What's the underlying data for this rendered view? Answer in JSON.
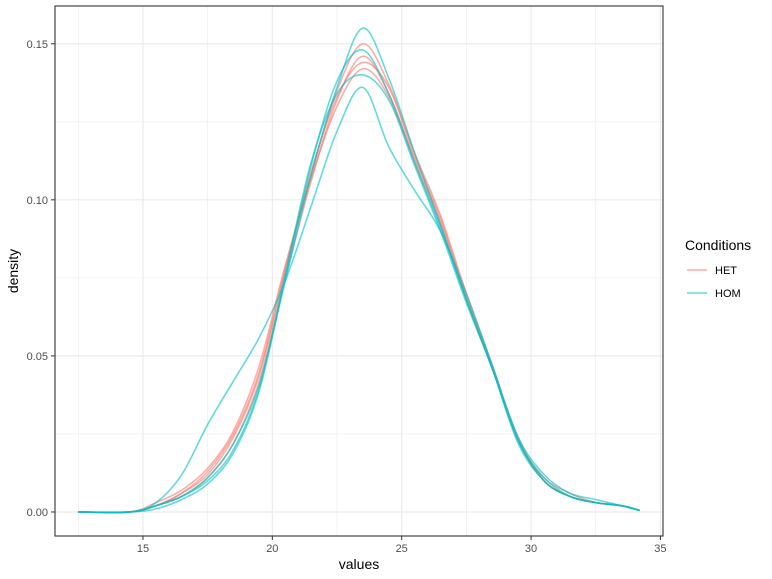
{
  "chart_data": {
    "type": "line",
    "title": "",
    "xlabel": "values",
    "ylabel": "density",
    "xlim": [
      11.6,
      35.1
    ],
    "ylim": [
      -0.0077,
      0.1621
    ],
    "x_ticks": [
      15,
      20,
      25,
      30,
      35
    ],
    "x_tick_labels": [
      "15",
      "20",
      "25",
      "30",
      "35"
    ],
    "y_ticks": [
      0.0,
      0.05,
      0.1,
      0.15
    ],
    "y_tick_labels": [
      "0.00",
      "0.05",
      "0.10",
      "0.15"
    ],
    "grid": true,
    "legend": {
      "title": "Conditions",
      "position": "right",
      "entries": [
        {
          "label": "HET",
          "color": "#F8766D"
        },
        {
          "label": "HOM",
          "color": "#00BFC4"
        }
      ]
    },
    "series": [
      {
        "group": "HET",
        "x": [
          12.5,
          14.5,
          15.5,
          16.5,
          17.5,
          18.5,
          19.5,
          20.5,
          21.5,
          22.5,
          23.5,
          24.5,
          25.5,
          26.5,
          27.5,
          28.5,
          29.5,
          30.5,
          31.5,
          32.5,
          33.5,
          34.2
        ],
        "values": [
          0.0,
          0.0,
          0.002,
          0.006,
          0.013,
          0.025,
          0.045,
          0.078,
          0.108,
          0.135,
          0.15,
          0.137,
          0.115,
          0.095,
          0.07,
          0.047,
          0.023,
          0.01,
          0.005,
          0.003,
          0.002,
          0.0005
        ]
      },
      {
        "group": "HET",
        "x": [
          12.5,
          14.5,
          15.5,
          16.5,
          17.5,
          18.5,
          19.5,
          20.5,
          21.5,
          22.5,
          23.5,
          24.5,
          25.5,
          26.5,
          27.5,
          28.5,
          29.5,
          30.5,
          31.5,
          32.5,
          33.5,
          34.2
        ],
        "values": [
          0.0,
          0.0,
          0.002,
          0.005,
          0.011,
          0.022,
          0.042,
          0.075,
          0.106,
          0.132,
          0.146,
          0.134,
          0.113,
          0.093,
          0.069,
          0.046,
          0.024,
          0.01,
          0.005,
          0.003,
          0.002,
          0.0005
        ]
      },
      {
        "group": "HET",
        "x": [
          12.5,
          14.5,
          15.5,
          16.5,
          17.5,
          18.5,
          19.5,
          20.5,
          21.5,
          22.5,
          23.5,
          24.5,
          25.5,
          26.5,
          27.5,
          28.5,
          29.5,
          30.5,
          31.5,
          32.5,
          33.5,
          34.2
        ],
        "values": [
          0.0,
          0.0,
          0.003,
          0.007,
          0.014,
          0.026,
          0.047,
          0.079,
          0.107,
          0.13,
          0.142,
          0.133,
          0.112,
          0.092,
          0.068,
          0.046,
          0.023,
          0.011,
          0.006,
          0.003,
          0.002,
          0.0005
        ]
      },
      {
        "group": "HET",
        "x": [
          12.5,
          14.5,
          15.5,
          16.5,
          17.5,
          18.5,
          19.5,
          20.5,
          21.5,
          22.5,
          23.5,
          24.5,
          25.5,
          26.5,
          27.5,
          28.5,
          29.5,
          30.5,
          31.5,
          32.5,
          33.5,
          34.2
        ],
        "values": [
          0.0,
          0.0,
          0.002,
          0.006,
          0.012,
          0.024,
          0.044,
          0.077,
          0.109,
          0.133,
          0.144,
          0.136,
          0.114,
          0.094,
          0.069,
          0.047,
          0.023,
          0.01,
          0.005,
          0.003,
          0.002,
          0.0005
        ]
      },
      {
        "group": "HOM",
        "x": [
          12.5,
          14.5,
          15.5,
          16.5,
          17.5,
          18.5,
          19.5,
          20.5,
          21.5,
          22.5,
          23.5,
          24.5,
          25.5,
          26.5,
          27.5,
          28.5,
          29.5,
          30.5,
          31.5,
          32.5,
          33.5,
          34.2
        ],
        "values": [
          0.0,
          0.0,
          0.002,
          0.005,
          0.011,
          0.022,
          0.041,
          0.074,
          0.108,
          0.136,
          0.155,
          0.139,
          0.115,
          0.092,
          0.068,
          0.046,
          0.022,
          0.01,
          0.005,
          0.003,
          0.002,
          0.0005
        ]
      },
      {
        "group": "HOM",
        "x": [
          12.5,
          14.5,
          15.5,
          16.5,
          17.5,
          18.5,
          19.5,
          20.5,
          21.5,
          22.5,
          23.5,
          24.5,
          25.5,
          26.5,
          27.5,
          28.5,
          29.5,
          30.5,
          31.5,
          32.5,
          33.5,
          34.2
        ],
        "values": [
          0.0,
          0.0,
          0.003,
          0.012,
          0.028,
          0.042,
          0.056,
          0.074,
          0.098,
          0.122,
          0.136,
          0.117,
          0.103,
          0.09,
          0.07,
          0.047,
          0.024,
          0.012,
          0.006,
          0.004,
          0.002,
          0.0005
        ]
      },
      {
        "group": "HOM",
        "x": [
          12.5,
          14.5,
          15.5,
          16.5,
          17.5,
          18.5,
          19.5,
          20.5,
          21.5,
          22.5,
          23.5,
          24.5,
          25.5,
          26.5,
          27.5,
          28.5,
          29.5,
          30.5,
          31.5,
          32.5,
          33.5,
          34.2
        ],
        "values": [
          0.0,
          0.0,
          0.002,
          0.005,
          0.01,
          0.02,
          0.04,
          0.076,
          0.112,
          0.134,
          0.14,
          0.132,
          0.111,
          0.09,
          0.067,
          0.046,
          0.023,
          0.011,
          0.005,
          0.003,
          0.002,
          0.0005
        ]
      },
      {
        "group": "HOM",
        "x": [
          12.5,
          14.5,
          15.5,
          16.5,
          17.5,
          18.5,
          19.5,
          20.5,
          21.5,
          22.5,
          23.5,
          24.5,
          25.5,
          26.5,
          27.5,
          28.5,
          29.5,
          30.5,
          31.5,
          32.5,
          33.5,
          34.2
        ],
        "values": [
          0.0,
          0.0,
          0.001,
          0.004,
          0.009,
          0.019,
          0.039,
          0.075,
          0.111,
          0.138,
          0.148,
          0.134,
          0.112,
          0.091,
          0.068,
          0.046,
          0.023,
          0.01,
          0.005,
          0.003,
          0.002,
          0.0005
        ]
      }
    ]
  }
}
